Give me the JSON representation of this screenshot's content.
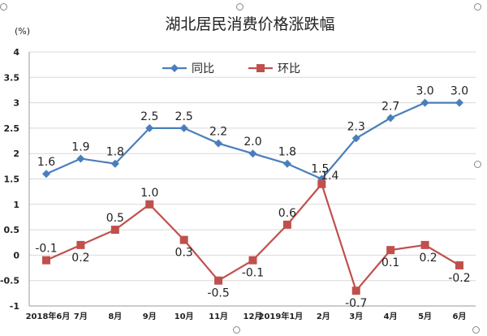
{
  "chart_data": {
    "type": "line",
    "title": "湖北居民消费价格涨跌幅",
    "unit_label": "(%)",
    "categories": [
      "2018年6月",
      "7月",
      "8月",
      "9月",
      "10月",
      "11月",
      "12月",
      "2019年1月",
      "2月",
      "3月",
      "4月",
      "5月",
      "6月"
    ],
    "ylim": [
      -1,
      4
    ],
    "yticks": [
      "4",
      "3.5",
      "3",
      "2.5",
      "2",
      "1.5",
      "1",
      "0.5",
      "0",
      "-0.5",
      "-1"
    ],
    "grid": true,
    "legend_position": "top-center",
    "series": [
      {
        "name": "同比",
        "color": "#4a7ebb",
        "marker": "diamond",
        "values": [
          1.6,
          1.9,
          1.8,
          2.5,
          2.5,
          2.2,
          2.0,
          1.8,
          1.5,
          2.3,
          2.7,
          3.0,
          3.0
        ],
        "labels": [
          "1.6",
          "1.9",
          "1.8",
          "2.5",
          "2.5",
          "2.2",
          "2.0",
          "1.8",
          "1.5",
          "2.3",
          "2.7",
          "3.0",
          "3.0"
        ]
      },
      {
        "name": "环比",
        "color": "#c0504d",
        "marker": "square",
        "values": [
          -0.1,
          0.2,
          0.5,
          1.0,
          0.3,
          -0.5,
          -0.1,
          0.6,
          1.4,
          -0.7,
          0.1,
          0.2,
          -0.2
        ],
        "labels": [
          "-0.1",
          "0.2",
          "0.5",
          "1.0",
          "0.3",
          "-0.5",
          "-0.1",
          "0.6",
          "1.4",
          "-0.7",
          "0.1",
          "0.2",
          "-0.2"
        ]
      }
    ]
  }
}
